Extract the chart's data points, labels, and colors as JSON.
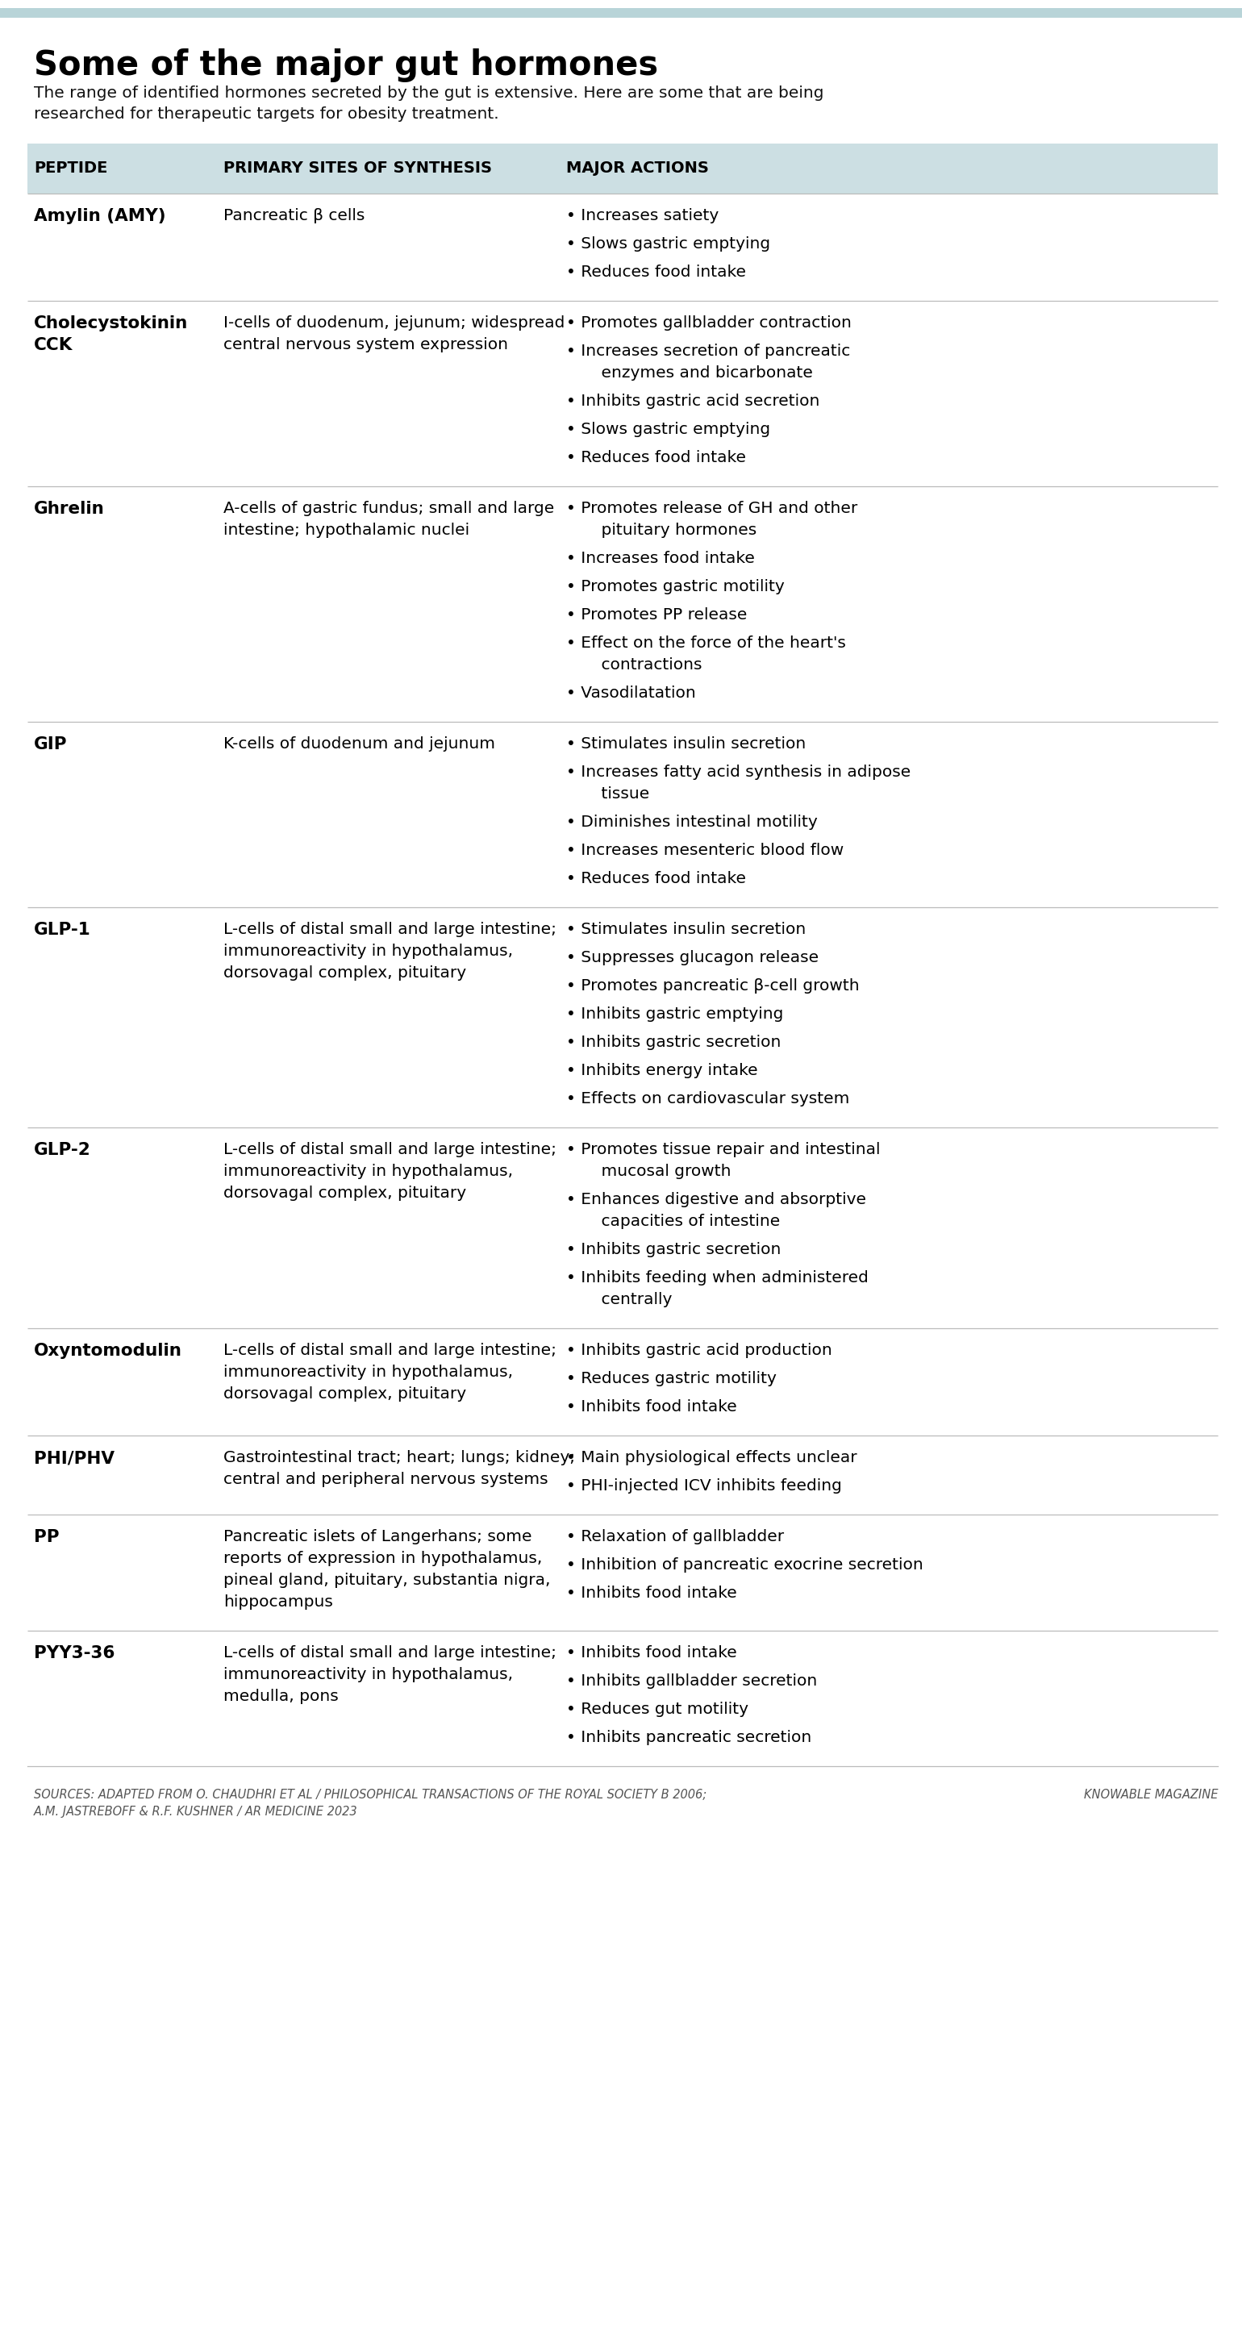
{
  "title": "Some of the major gut hormones",
  "subtitle": "The range of identified hormones secreted by the gut is extensive. Here are some that are being\nresearched for therapeutic targets for obesity treatment.",
  "top_bar_color": "#b8d4d8",
  "header_bg_color": "#ccdfe3",
  "divider_color": "#bbbbbb",
  "col_headers": [
    "PEPTIDE",
    "PRIMARY SITES OF SYNTHESIS",
    "MAJOR ACTIONS"
  ],
  "rows": [
    {
      "peptide": "Amylin (AMY)",
      "sites": "Pancreatic β cells",
      "actions": [
        "Increases satiety",
        "Slows gastric emptying",
        "Reduces food intake"
      ]
    },
    {
      "peptide": "Cholecystokinin\nCCK",
      "sites": "I-cells of duodenum, jejunum; widespread\ncentral nervous system expression",
      "actions": [
        "Promotes gallbladder contraction",
        "Increases secretion of pancreatic\n    enzymes and bicarbonate",
        "Inhibits gastric acid secretion",
        "Slows gastric emptying",
        "Reduces food intake"
      ]
    },
    {
      "peptide": "Ghrelin",
      "sites": "A-cells of gastric fundus; small and large\nintestine; hypothalamic nuclei",
      "actions": [
        "Promotes release of GH and other\n    pituitary hormones",
        "Increases food intake",
        "Promotes gastric motility",
        "Promotes PP release",
        "Effect on the force of the heart's\n    contractions",
        "Vasodilatation"
      ]
    },
    {
      "peptide": "GIP",
      "sites": "K-cells of duodenum and jejunum",
      "actions": [
        "Stimulates insulin secretion",
        "Increases fatty acid synthesis in adipose\n    tissue",
        "Diminishes intestinal motility",
        "Increases mesenteric blood flow",
        "Reduces food intake"
      ]
    },
    {
      "peptide": "GLP-1",
      "sites": "L-cells of distal small and large intestine;\nimmunoreactivity in hypothalamus,\ndorsovagal complex, pituitary",
      "actions": [
        "Stimulates insulin secretion",
        "Suppresses glucagon release",
        "Promotes pancreatic β-cell growth",
        "Inhibits gastric emptying",
        "Inhibits gastric secretion",
        "Inhibits energy intake",
        "Effects on cardiovascular system"
      ]
    },
    {
      "peptide": "GLP-2",
      "sites": "L-cells of distal small and large intestine;\nimmunoreactivity in hypothalamus,\ndorsovagal complex, pituitary",
      "actions": [
        "Promotes tissue repair and intestinal\n    mucosal growth",
        "Enhances digestive and absorptive\n    capacities of intestine",
        "Inhibits gastric secretion",
        "Inhibits feeding when administered\n    centrally"
      ]
    },
    {
      "peptide": "Oxyntomodulin",
      "sites": "L-cells of distal small and large intestine;\nimmunoreactivity in hypothalamus,\ndorsovagal complex, pituitary",
      "actions": [
        "Inhibits gastric acid production",
        "Reduces gastric motility",
        "Inhibits food intake"
      ]
    },
    {
      "peptide": "PHI/PHV",
      "sites": "Gastrointestinal tract; heart; lungs; kidney;\ncentral and peripheral nervous systems",
      "actions": [
        "Main physiological effects unclear",
        "PHI-injected ICV inhibits feeding"
      ]
    },
    {
      "peptide": "PP",
      "sites": "Pancreatic islets of Langerhans; some\nreports of expression in hypothalamus,\npineal gland, pituitary, substantia nigra,\nhippocampus",
      "actions": [
        "Relaxation of gallbladder",
        "Inhibition of pancreatic exocrine secretion",
        "Inhibits food intake"
      ]
    },
    {
      "peptide": "PYY3-36",
      "sites": "L-cells of distal small and large intestine;\nimmunoreactivity in hypothalamus,\nmedulla, pons",
      "actions": [
        "Inhibits food intake",
        "Inhibits gallbladder secretion",
        "Reduces gut motility",
        "Inhibits pancreatic secretion"
      ]
    }
  ],
  "footer_left": "SOURCES: ADAPTED FROM O. CHAUDHRI ET AL / PHILOSOPHICAL TRANSACTIONS OF THE ROYAL SOCIETY B 2006;\nA.M. JASTREBOFF & R.F. KUSHNER / AR MEDICINE 2023",
  "footer_right": "KNOWABLE MAGAZINE"
}
